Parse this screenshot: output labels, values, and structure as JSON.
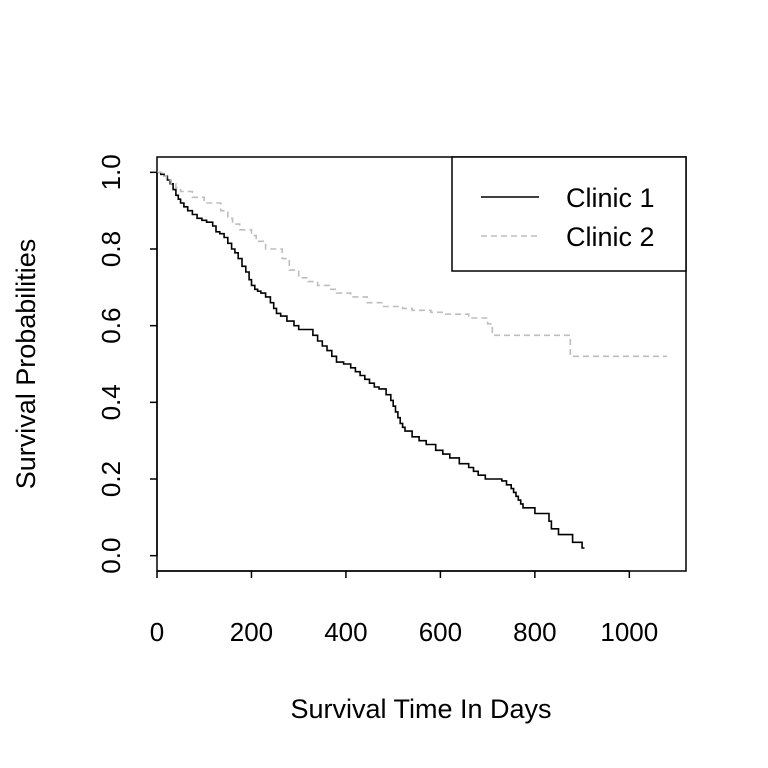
{
  "chart_data": {
    "type": "line",
    "step": true,
    "xlabel": "Survival Time In Days",
    "ylabel": "Survival Probabilities",
    "xlim": [
      0,
      1120
    ],
    "ylim": [
      -0.04,
      1.04
    ],
    "x_ticks": [
      0,
      200,
      400,
      600,
      800,
      1000
    ],
    "y_ticks": [
      0.0,
      0.2,
      0.4,
      0.6,
      0.8,
      1.0
    ],
    "x_tick_labels": [
      "0",
      "200",
      "400",
      "600",
      "800",
      "1000"
    ],
    "y_tick_labels": [
      "0.0",
      "0.2",
      "0.4",
      "0.6",
      "0.8",
      "1.0"
    ],
    "legend_position": "top-right",
    "series": [
      {
        "name": "Clinic 1",
        "color": "#000000",
        "dash": "solid",
        "x": [
          0,
          8,
          15,
          22,
          28,
          34,
          40,
          45,
          50,
          57,
          65,
          75,
          85,
          95,
          105,
          118,
          125,
          133,
          142,
          150,
          158,
          165,
          172,
          180,
          188,
          195,
          200,
          207,
          213,
          220,
          230,
          240,
          247,
          253,
          262,
          275,
          290,
          300,
          330,
          340,
          350,
          360,
          370,
          380,
          395,
          410,
          420,
          430,
          440,
          450,
          460,
          470,
          485,
          495,
          500,
          505,
          510,
          515,
          520,
          525,
          540,
          555,
          570,
          590,
          605,
          620,
          640,
          660,
          670,
          680,
          695,
          730,
          740,
          750,
          755,
          760,
          765,
          770,
          775,
          800,
          830,
          835,
          850,
          880,
          900,
          905
        ],
        "y": [
          1.0,
          0.995,
          0.99,
          0.98,
          0.97,
          0.955,
          0.94,
          0.93,
          0.92,
          0.91,
          0.9,
          0.89,
          0.88,
          0.875,
          0.87,
          0.86,
          0.845,
          0.84,
          0.83,
          0.815,
          0.8,
          0.79,
          0.775,
          0.755,
          0.74,
          0.72,
          0.705,
          0.695,
          0.69,
          0.685,
          0.675,
          0.66,
          0.645,
          0.632,
          0.625,
          0.612,
          0.6,
          0.59,
          0.575,
          0.56,
          0.547,
          0.535,
          0.52,
          0.505,
          0.5,
          0.49,
          0.48,
          0.47,
          0.46,
          0.45,
          0.44,
          0.435,
          0.42,
          0.405,
          0.39,
          0.375,
          0.36,
          0.345,
          0.335,
          0.325,
          0.31,
          0.3,
          0.29,
          0.275,
          0.265,
          0.255,
          0.24,
          0.23,
          0.22,
          0.21,
          0.2,
          0.195,
          0.185,
          0.175,
          0.165,
          0.155,
          0.145,
          0.135,
          0.125,
          0.11,
          0.09,
          0.07,
          0.055,
          0.035,
          0.02,
          0.02
        ]
      },
      {
        "name": "Clinic 2",
        "color": "#bebebe",
        "dash": "dashed",
        "x": [
          0,
          10,
          20,
          30,
          40,
          50,
          75,
          100,
          135,
          150,
          160,
          175,
          200,
          210,
          230,
          265,
          280,
          300,
          320,
          340,
          365,
          380,
          410,
          445,
          480,
          520,
          540,
          580,
          610,
          660,
          700,
          710,
          775,
          820,
          875,
          910,
          1000,
          1080
        ],
        "y": [
          1.0,
          0.99,
          0.98,
          0.97,
          0.96,
          0.95,
          0.935,
          0.92,
          0.9,
          0.88,
          0.865,
          0.85,
          0.835,
          0.82,
          0.8,
          0.775,
          0.745,
          0.725,
          0.715,
          0.705,
          0.695,
          0.685,
          0.675,
          0.66,
          0.65,
          0.645,
          0.64,
          0.635,
          0.63,
          0.62,
          0.605,
          0.575,
          0.575,
          0.575,
          0.52,
          0.52,
          0.52,
          0.52
        ]
      }
    ]
  }
}
